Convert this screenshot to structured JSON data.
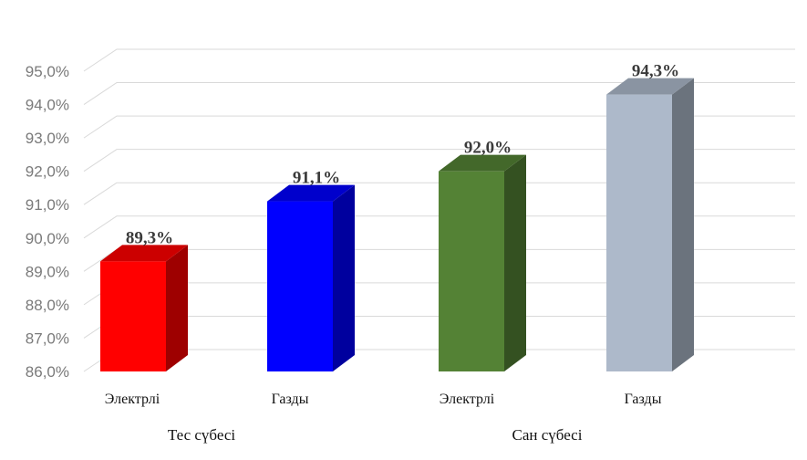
{
  "chart_data": {
    "type": "bar",
    "categories": [
      "Электрлі",
      "Газды",
      "Электрлі",
      "Газды"
    ],
    "groups": [
      {
        "label": "Тес сүбесі",
        "categories": [
          0,
          1
        ]
      },
      {
        "label": "Сан сүбесі",
        "categories": [
          2,
          3
        ]
      }
    ],
    "values": [
      89.3,
      91.1,
      92.0,
      94.3
    ],
    "value_labels": [
      "89,3%",
      "91,1%",
      "92,0%",
      "94,3%"
    ],
    "colors": [
      "#ff0000",
      "#0000ff",
      "#548235",
      "#adb9ca"
    ],
    "ylim": [
      86.0,
      95.0
    ],
    "yticks": [
      "86,0%",
      "87,0%",
      "88,0%",
      "89,0%",
      "90,0%",
      "91,0%",
      "92,0%",
      "93,0%",
      "94,0%",
      "95,0%"
    ],
    "grid": true,
    "style": "3d-column"
  }
}
